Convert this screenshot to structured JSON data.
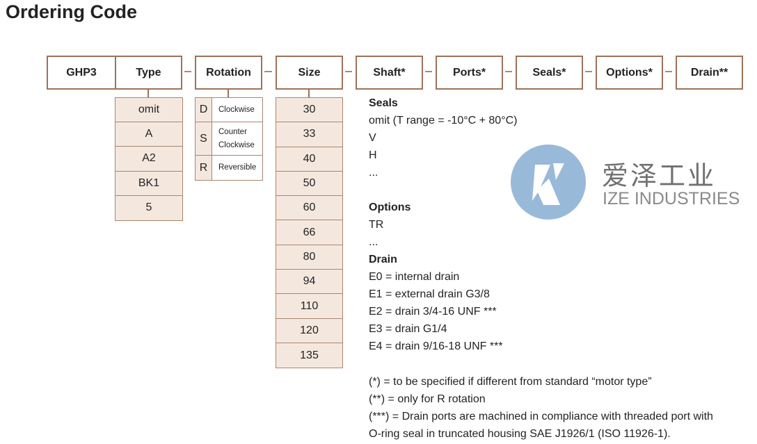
{
  "title": "Ordering Code",
  "headers": [
    "GHP3",
    "Type",
    "Rotation",
    "Size",
    "Shaft*",
    "Ports*",
    "Seals*",
    "Options*",
    "Drain**"
  ],
  "type_options": [
    "omit",
    "A",
    "A2",
    "BK1",
    "5"
  ],
  "rotation_options": [
    {
      "code": "D",
      "label": "Clockwise"
    },
    {
      "code": "S",
      "label": "Counter Clockwise"
    },
    {
      "code": "R",
      "label": "Reversible"
    }
  ],
  "size_options": [
    "30",
    "33",
    "40",
    "50",
    "60",
    "66",
    "80",
    "94",
    "110",
    "120",
    "135"
  ],
  "seals": {
    "heading": "Seals",
    "items": [
      "omit (T range = -10°C + 80°C)",
      "V",
      "H",
      "..."
    ]
  },
  "options": {
    "heading": "Options",
    "items": [
      "TR",
      "..."
    ]
  },
  "drain": {
    "heading": "Drain",
    "items": [
      "E0 = internal drain",
      "E1 = external drain G3/8",
      "E2 = drain 3/4-16 UNF ***",
      "E3 = drain G1/4",
      "E4 = drain 9/16-18 UNF ***"
    ]
  },
  "notes": [
    "(*) = to be specified if different from standard “motor type”",
    "(**) = only for R rotation",
    "(***) = Drain ports are machined in compliance with threaded port with",
    "O-ring seal in truncated housing SAE J1926/1 (ISO 11926-1)."
  ],
  "watermark": {
    "cn": "爱泽工业",
    "en": "IZE INDUSTRIES"
  },
  "colors": {
    "border": "#9b7259",
    "fill": "#f4e8de",
    "logo": "#94b6d6"
  }
}
